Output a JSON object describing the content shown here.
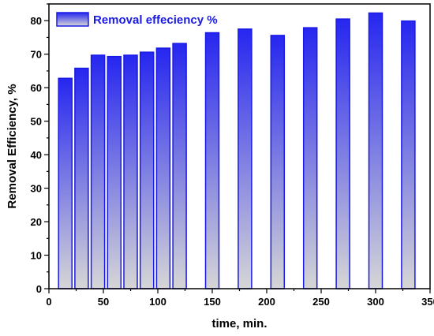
{
  "chart_data": {
    "type": "bar",
    "title": "",
    "xlabel": "time, min.",
    "ylabel": "Removal Efficiency, %",
    "xlim": [
      0,
      350
    ],
    "ylim": [
      0,
      85
    ],
    "x_ticks": [
      0,
      50,
      100,
      150,
      200,
      250,
      300,
      350
    ],
    "y_ticks": [
      0,
      10,
      20,
      30,
      40,
      50,
      60,
      70,
      80
    ],
    "grid": false,
    "legend_position": "top-left",
    "bar_fill_top_color": "#2626f0",
    "bar_fill_bottom_color": "#d6d6d6",
    "bar_edge_color": "#1a1ae6",
    "legend_text_color": "#1a1ae6",
    "series": [
      {
        "name": "Removal effeciency %",
        "x": [
          15,
          30,
          45,
          60,
          75,
          90,
          105,
          120,
          150,
          180,
          210,
          240,
          270,
          300,
          330
        ],
        "values": [
          62.8,
          65.8,
          69.7,
          69.3,
          69.7,
          70.6,
          71.8,
          73.2,
          76.4,
          77.5,
          75.6,
          77.9,
          80.5,
          82.3,
          79.9
        ]
      }
    ]
  }
}
